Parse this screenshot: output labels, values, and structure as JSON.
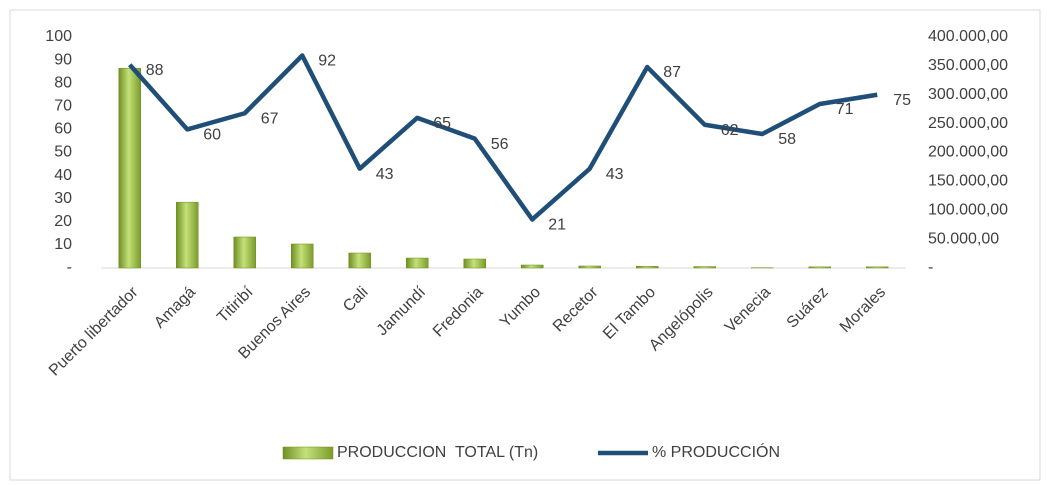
{
  "chart_data": {
    "type": "bar-line",
    "categories": [
      "Puerto libertador",
      "Amagá",
      "Titiribí",
      "Buenos Aires",
      "Cali",
      "Jamundí",
      "Fredonia",
      "Yumbo",
      "Recetor",
      "El Tambo",
      "Angelópolis",
      "Venecia",
      "Suárez",
      "Morales"
    ],
    "series": [
      {
        "name": "PRODUCCION  TOTAL (Tn)",
        "type": "bar",
        "axis": "y2",
        "color": "#8db33a",
        "values": [
          346000,
          114000,
          53700,
          41600,
          26000,
          17300,
          15600,
          5200,
          3500,
          3000,
          2500,
          500,
          2000,
          2000
        ]
      },
      {
        "name": "% PRODUCCIÓN",
        "type": "line",
        "axis": "y",
        "color": "#1f4e79",
        "values": [
          88,
          60,
          67,
          92,
          43,
          65,
          56,
          21,
          43,
          87,
          62,
          58,
          71,
          75
        ]
      }
    ],
    "ylim": [
      0,
      100
    ],
    "yticks": [
      {
        "value": 0,
        "label": "-"
      },
      10,
      20,
      30,
      40,
      50,
      60,
      70,
      80,
      90,
      100
    ],
    "y2lim": [
      0,
      400000
    ],
    "y2ticks": [
      {
        "value": 0,
        "label": "-"
      },
      {
        "value": 50000,
        "label": "50.000,00"
      },
      {
        "value": 100000,
        "label": "100.000,00"
      },
      {
        "value": 150000,
        "label": "150.000,00"
      },
      {
        "value": 200000,
        "label": "200.000,00"
      },
      {
        "value": 250000,
        "label": "250.000,00"
      },
      {
        "value": 300000,
        "label": "300.000,00"
      },
      {
        "value": 350000,
        "label": "350.000,00"
      },
      {
        "value": 400000,
        "label": "400.000,00"
      }
    ],
    "legend": "bottom"
  }
}
